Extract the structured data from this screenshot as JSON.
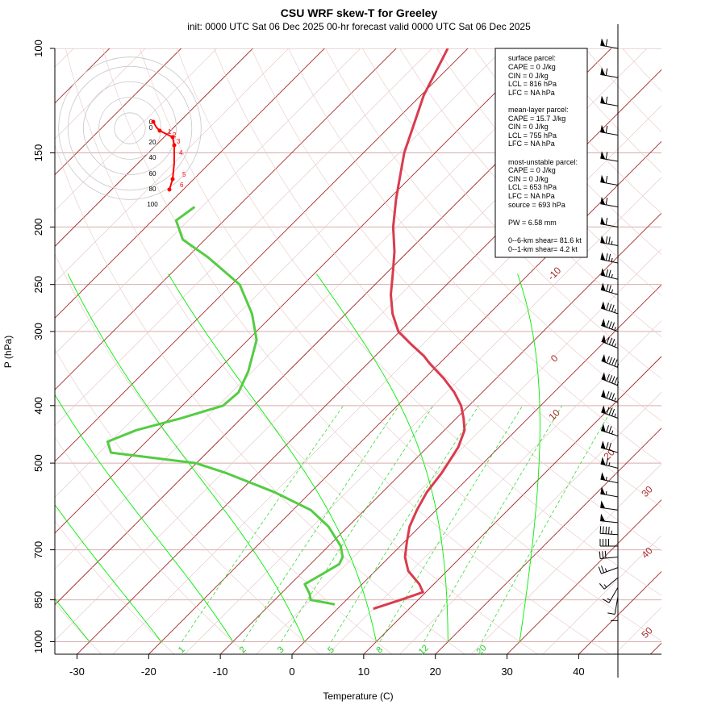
{
  "chart_data": {
    "type": "line",
    "title": "CSU WRF skew-T for Greeley",
    "subtitle": "init: 0000 UTC Sat 06 Dec 2025    00-hr forecast valid 0000 UTC Sat 06 Dec 2025",
    "xlabel": "Temperature (C)",
    "ylabel": "P (hPa)",
    "x_ticks": [
      -30,
      -20,
      -10,
      0,
      10,
      20,
      30,
      40
    ],
    "y_ticks": [
      100,
      150,
      200,
      250,
      300,
      400,
      500,
      700,
      850,
      1000
    ],
    "ylim": [
      1050,
      100
    ],
    "y_scale": "log",
    "skew": "45-degree",
    "isotherm_labels": [
      "-10",
      "0",
      "10",
      "20",
      "30",
      "40",
      "50"
    ],
    "mixing_ratio_labels": [
      "1",
      "2",
      "3",
      "5",
      "8",
      "12",
      "20"
    ],
    "series": [
      {
        "name": "temperature",
        "color": "#d93c4e",
        "pressure": [
          880,
          845,
          825,
          800,
          760,
          720,
          680,
          640,
          600,
          560,
          520,
          500,
          470,
          440,
          420,
          400,
          380,
          360,
          340,
          330,
          315,
          300,
          280,
          260,
          240,
          220,
          200,
          180,
          170,
          150,
          120,
          100
        ],
        "temp": [
          5,
          8,
          9.6,
          8,
          4.6,
          2.2,
          0.4,
          -1.4,
          -2.7,
          -3.8,
          -4.4,
          -4.9,
          -5.7,
          -7.2,
          -9,
          -11.1,
          -13.9,
          -17.3,
          -21.3,
          -23.2,
          -26.7,
          -30.2,
          -33.5,
          -36.4,
          -39,
          -41.9,
          -45.5,
          -48.9,
          -50.6,
          -54.3,
          -59.6,
          -62.8
        ]
      },
      {
        "name": "dewpoint",
        "color": "#55cc44",
        "pressure": [
          865,
          850,
          830,
          800,
          770,
          740,
          720,
          690,
          640,
          600,
          560,
          520,
          500,
          480,
          460,
          440,
          420,
          400,
          380,
          350,
          310,
          280,
          250,
          225,
          210,
          195,
          185
        ],
        "temp": [
          -1,
          -5,
          -6,
          -8,
          -7,
          -6,
          -6.5,
          -8.3,
          -12.7,
          -17.5,
          -25,
          -34.4,
          -40.1,
          -53.4,
          -55.4,
          -53,
          -48.4,
          -44.3,
          -44,
          -45.6,
          -48.8,
          -53.1,
          -58.9,
          -67.1,
          -73.1,
          -76.7,
          -76
        ]
      }
    ],
    "parcel_info": {
      "surface_header": "surface parcel:",
      "surface_lines": [
        "CAPE = 0 J/kg",
        "CIN = 0 J/kg",
        "LCL = 816 hPa",
        "LFC = NA hPa"
      ],
      "mean_header": "mean-layer parcel:",
      "mean_lines": [
        "CAPE = 15.7 J/kg",
        "CIN = 0 J/kg",
        "LCL = 755 hPa",
        "LFC = NA hPa"
      ],
      "mu_header": "most-unstable parcel:",
      "mu_lines": [
        "CAPE = 0 J/kg",
        "CIN = 0 J/kg",
        "LCL = 653 hPa",
        "LFC = NA hPa",
        "source = 693 hPa"
      ],
      "pw": "PW =  6.58 mm",
      "shear_06": "0--6-km shear= 81.6 kt",
      "shear_01": "0--1-km shear= 4.2 kt"
    },
    "hodograph": {
      "ring_labels": [
        "20",
        "40",
        "60",
        "80",
        "100"
      ],
      "height_labels": [
        "1",
        "2",
        "3",
        "4",
        "5",
        "6"
      ],
      "u": [
        0,
        -1,
        -4,
        5,
        8,
        12,
        20,
        25,
        30,
        33
      ],
      "v": [
        0,
        -4,
        -8,
        -10,
        -14,
        -28,
        -40,
        -60,
        -80,
        -87
      ]
    },
    "wind_barbs": {
      "pressure": [
        100,
        112,
        125,
        140,
        155,
        170,
        185,
        200,
        215,
        230,
        245,
        260,
        280,
        300,
        320,
        345,
        370,
        395,
        420,
        450,
        480,
        510,
        540,
        570,
        600,
        630,
        660,
        690,
        720,
        750,
        780,
        810,
        840,
        860
      ],
      "speed_kt": [
        60,
        60,
        60,
        60,
        60,
        60,
        60,
        60,
        75,
        75,
        75,
        75,
        85,
        85,
        85,
        95,
        95,
        85,
        85,
        75,
        70,
        65,
        55,
        55,
        50,
        50,
        45,
        40,
        30,
        25,
        15,
        15,
        10,
        10
      ],
      "direction_deg": [
        280,
        280,
        280,
        280,
        280,
        280,
        280,
        280,
        280,
        282,
        284,
        286,
        288,
        290,
        292,
        292,
        292,
        290,
        290,
        288,
        286,
        284,
        282,
        280,
        278,
        276,
        274,
        270,
        265,
        250,
        230,
        210,
        190,
        180
      ]
    }
  }
}
